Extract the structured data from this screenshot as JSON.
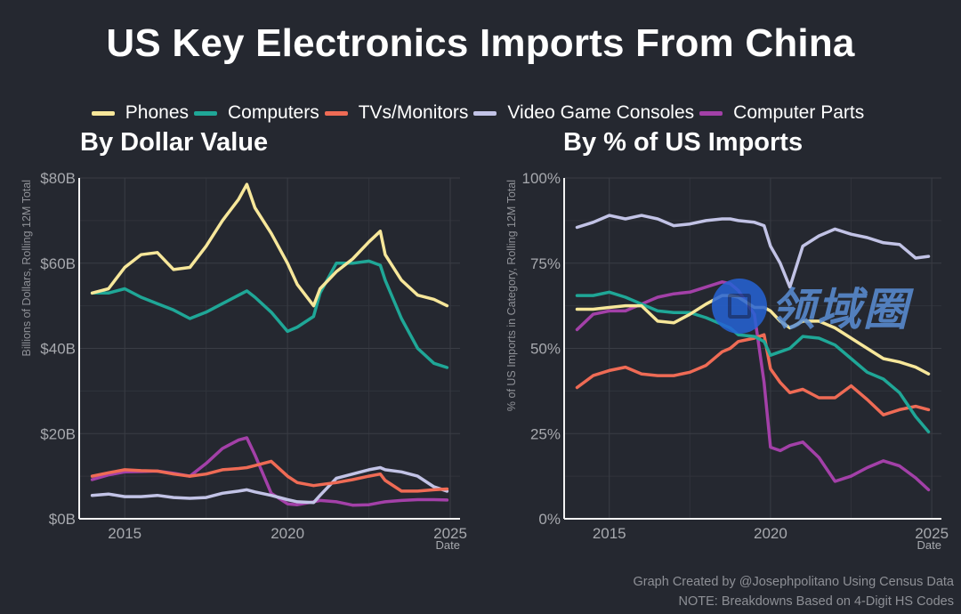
{
  "title": "US Key Electronics Imports From China",
  "legend": [
    {
      "name": "Phones",
      "color": "#f7e79a"
    },
    {
      "name": "Computers",
      "color": "#1fa797"
    },
    {
      "name": "TVs/Monitors",
      "color": "#ef6b55"
    },
    {
      "name": "Video Game Consoles",
      "color": "#c2c3e6"
    },
    {
      "name": "Computer Parts",
      "color": "#a340a8"
    }
  ],
  "caption": {
    "line1": "Graph Created by @Josephpolitano Using Census Data",
    "line2": "NOTE: Breakdowns Based on 4-Digit HS Codes"
  },
  "watermark": "领域圈",
  "chart_data": [
    {
      "type": "line",
      "title": "By Dollar Value",
      "xlabel": "Date",
      "ylabel": "Billions of Dollars, Rolling 12M Total",
      "ylim": [
        0,
        80
      ],
      "xlim": [
        2013.6,
        2025.3
      ],
      "yticks": [
        0,
        20,
        40,
        60,
        80
      ],
      "ytick_labels": [
        "$0B",
        "$20B",
        "$40B",
        "$60B",
        "$80B"
      ],
      "xticks": [
        2015,
        2020,
        2025
      ],
      "xtick_labels": [
        "2015",
        "2020",
        "2025"
      ],
      "grid": true,
      "x": [
        2014.0,
        2014.5,
        2015.0,
        2015.5,
        2016.0,
        2016.5,
        2017.0,
        2017.5,
        2018.0,
        2018.5,
        2018.75,
        2019.0,
        2019.5,
        2020.0,
        2020.3,
        2020.8,
        2021.0,
        2021.5,
        2022.0,
        2022.5,
        2022.85,
        2023.0,
        2023.5,
        2024.0,
        2024.5,
        2024.9
      ],
      "series": [
        {
          "name": "Phones",
          "values": [
            53,
            54,
            59,
            62,
            62.5,
            58.5,
            59,
            64,
            70,
            75,
            78.5,
            73,
            67,
            60,
            55,
            50,
            54,
            58,
            61,
            65,
            67.5,
            62,
            56,
            52.5,
            51.5,
            50
          ]
        },
        {
          "name": "Computers",
          "values": [
            53,
            53,
            54,
            52,
            50.5,
            49,
            47,
            48.5,
            50.5,
            52.5,
            53.5,
            52,
            48.5,
            44,
            45,
            47.5,
            53,
            60,
            60,
            60.5,
            59.5,
            56,
            47,
            40,
            36.5,
            35.5
          ]
        },
        {
          "name": "TVs/Monitors",
          "values": [
            10,
            10.8,
            11.5,
            11.3,
            11.2,
            10.5,
            10,
            10.5,
            11.5,
            11.8,
            12,
            12.5,
            13.5,
            10,
            8.5,
            7.8,
            8,
            8.5,
            9.2,
            10,
            10.5,
            9,
            6.5,
            6.5,
            6.8,
            7
          ]
        },
        {
          "name": "Video Game Consoles",
          "values": [
            5.5,
            5.8,
            5.2,
            5.2,
            5.5,
            5.0,
            4.8,
            5.0,
            6.0,
            6.5,
            6.8,
            6.3,
            5.5,
            4.5,
            4.0,
            3.8,
            5.5,
            9.5,
            10.5,
            11.5,
            12.0,
            11.5,
            11.0,
            10.0,
            7.5,
            6.5
          ]
        },
        {
          "name": "Computer Parts",
          "values": [
            9.2,
            10.3,
            11.0,
            11.1,
            11.2,
            10.7,
            10.0,
            13.0,
            16.5,
            18.5,
            19.0,
            15.0,
            6.0,
            3.5,
            3.3,
            4.0,
            4.3,
            4.0,
            3.2,
            3.3,
            3.8,
            4.0,
            4.3,
            4.5,
            4.5,
            4.4
          ]
        }
      ]
    },
    {
      "type": "line",
      "title": "By % of US Imports",
      "xlabel": "Date",
      "ylabel": "% of US Imports in Category, Rolling 12M Total",
      "ylim": [
        0,
        100
      ],
      "xlim": [
        2013.6,
        2025.3
      ],
      "yticks": [
        0,
        25,
        50,
        75,
        100
      ],
      "ytick_labels": [
        "0%",
        "25%",
        "50%",
        "75%",
        "100%"
      ],
      "xticks": [
        2015,
        2020,
        2025
      ],
      "xtick_labels": [
        "2015",
        "2020",
        "2025"
      ],
      "grid": true,
      "x": [
        2014.0,
        2014.5,
        2015.0,
        2015.5,
        2016.0,
        2016.5,
        2017.0,
        2017.5,
        2018.0,
        2018.5,
        2018.75,
        2019.0,
        2019.5,
        2019.8,
        2020.0,
        2020.3,
        2020.6,
        2021.0,
        2021.5,
        2022.0,
        2022.5,
        2023.0,
        2023.5,
        2024.0,
        2024.5,
        2024.9
      ],
      "series": [
        {
          "name": "Phones",
          "values": [
            61.5,
            61.5,
            62,
            62.5,
            62.5,
            58,
            57.5,
            60,
            63,
            65.5,
            65.5,
            65,
            62,
            62,
            61,
            58,
            56,
            58,
            58,
            56,
            53,
            50,
            47,
            46,
            44.5,
            42.5
          ]
        },
        {
          "name": "Computers",
          "values": [
            65.5,
            65.5,
            66.5,
            65,
            63,
            61,
            60.5,
            60.5,
            59,
            57,
            56,
            54,
            53.5,
            52,
            48,
            49,
            50,
            53.5,
            53,
            51,
            47,
            43,
            41,
            37,
            30,
            25.5
          ]
        },
        {
          "name": "TVs/Monitors",
          "values": [
            38.5,
            42,
            43.5,
            44.5,
            42.5,
            42,
            42,
            43,
            45,
            49,
            50,
            52,
            53,
            54,
            44,
            40,
            37,
            38,
            35.5,
            35.5,
            39,
            35,
            30.5,
            32,
            33,
            32
          ]
        },
        {
          "name": "Video Game Consoles",
          "values": [
            85.5,
            87,
            89,
            88,
            89,
            88,
            86,
            86.5,
            87.5,
            88,
            88,
            87.5,
            87,
            86,
            80,
            75,
            68,
            80,
            83,
            85,
            83.5,
            82.5,
            81,
            80.5,
            76.5,
            77
          ]
        },
        {
          "name": "Computer Parts",
          "values": [
            55.5,
            60,
            61,
            61,
            63,
            65,
            66,
            66.5,
            68,
            69.5,
            69,
            67,
            60,
            40,
            21,
            20,
            21.5,
            22.5,
            18,
            11,
            12.5,
            15,
            17,
            15.5,
            12,
            8.5
          ]
        }
      ]
    }
  ]
}
